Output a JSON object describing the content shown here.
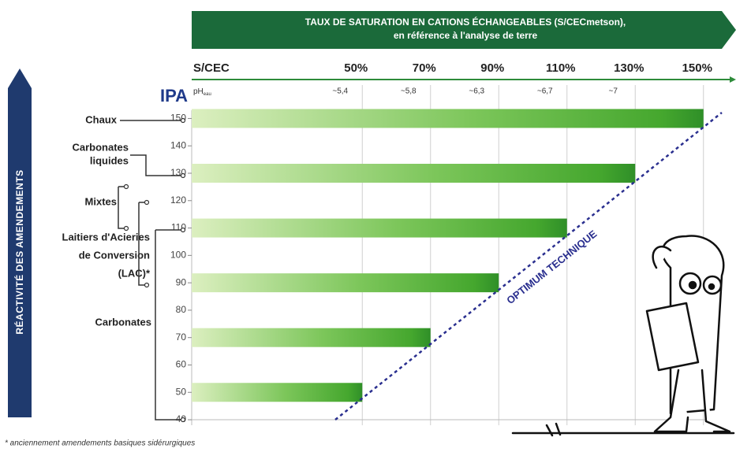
{
  "chart_data": {
    "type": "bar",
    "title": [
      "TAUX DE SATURATION EN CATIONS ÉCHANGEABLES (S/CECmetson),",
      "en référence à l'analyse de terre"
    ],
    "x_label": "S/CEC",
    "y_label": "IPA",
    "side_label": "RÉACTIVITÉ DES AMENDEMENTS",
    "ph_label": "pH",
    "ph_sub": "eau",
    "ph_ticks": [
      "~5,4",
      "~5,8",
      "~6,3",
      "~6,7",
      "~7"
    ],
    "xlim": [
      0,
      160
    ],
    "xticks": [
      {
        "value": 50,
        "label": "50%"
      },
      {
        "value": 70,
        "label": "70%"
      },
      {
        "value": 90,
        "label": "90%"
      },
      {
        "value": 110,
        "label": "110%"
      },
      {
        "value": 130,
        "label": "130%"
      },
      {
        "value": 150,
        "label": "150%"
      }
    ],
    "ylim": [
      38,
      153
    ],
    "yticks": [
      40,
      50,
      60,
      70,
      80,
      90,
      100,
      110,
      120,
      130,
      140,
      150
    ],
    "ipa": [
      150,
      130,
      110,
      90,
      70,
      50
    ],
    "values": [
      150,
      130,
      110,
      90,
      70,
      50
    ],
    "color": "#4cae2e",
    "grid": true,
    "amendments": [
      [
        "Chaux"
      ],
      [
        "Carbonates",
        "liquides"
      ],
      [
        "Mixtes"
      ],
      [
        "Laitiers d'Acieries",
        "de Conversion",
        "(LAC)*"
      ],
      [
        "Carbonates"
      ]
    ],
    "annotation": "OPTIMUM TECHNIQUE",
    "footnote": "* anciennement amendements basiques sidérurgiques"
  }
}
